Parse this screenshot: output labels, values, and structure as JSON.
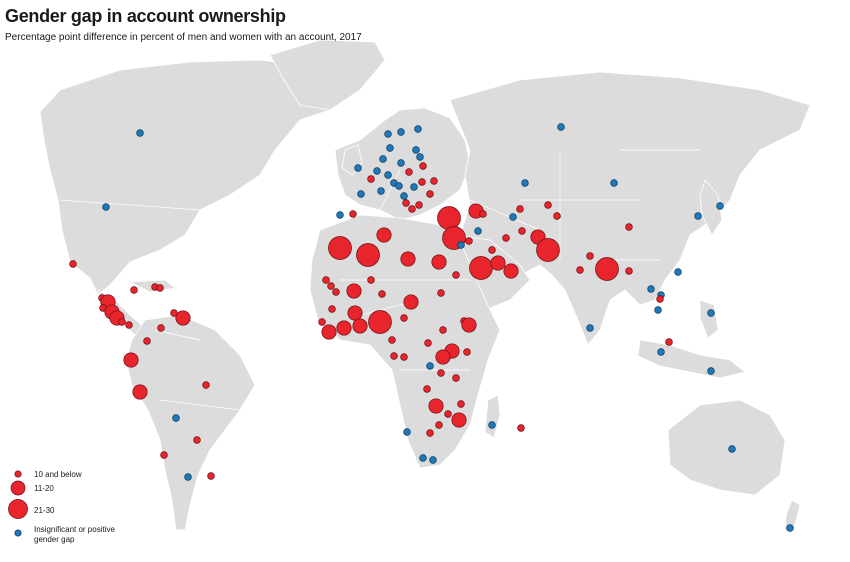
{
  "title": "Gender gap in account ownership",
  "subtitle": "Percentage point difference in percent of men and women with an account, 2017",
  "legend": {
    "items": [
      {
        "label": "10 and below",
        "category": "small",
        "color": "#e8242d"
      },
      {
        "label": "11-20",
        "category": "medium",
        "color": "#e8242d"
      },
      {
        "label": "21-30",
        "category": "large",
        "color": "#e8242d"
      },
      {
        "label": "Insignificant or positive",
        "label2": "gender gap",
        "category": "blue",
        "color": "#1f78b8"
      }
    ]
  },
  "colors": {
    "land": "#dcdcdc",
    "gap": "#e8242d",
    "insignificant": "#1f78b8"
  }
}
